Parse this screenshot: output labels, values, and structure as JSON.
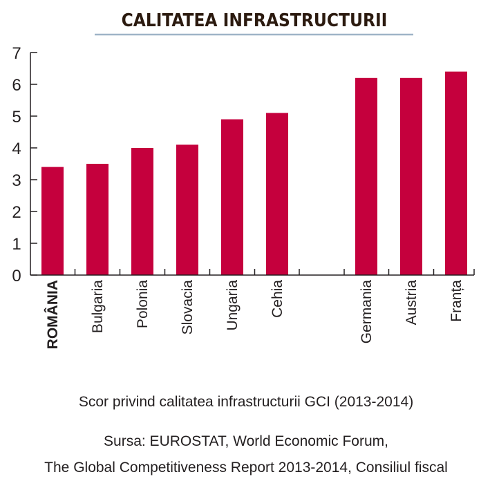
{
  "chart_data": {
    "type": "bar",
    "title": "CALITATEA INFRASTRUCTURII",
    "categories": [
      "ROMÂNIA",
      "Bulgaria",
      "Polonia",
      "Slovacia",
      "Ungaria",
      "Cehia",
      "Germania",
      "Austria",
      "Franța"
    ],
    "values": [
      3.4,
      3.5,
      4.0,
      4.1,
      4.9,
      5.1,
      6.2,
      6.2,
      6.4
    ],
    "highlight_category": "ROMÂNIA",
    "yticks": [
      "0",
      "1",
      "2",
      "3",
      "4",
      "5",
      "6",
      "7"
    ],
    "ylim": [
      0,
      7
    ],
    "grid": false,
    "legend": "none",
    "bar_color": "#c5003d",
    "axis_color": "#231f20",
    "title_rule_color": "#9fb4c7",
    "xlabel": "",
    "ylabel": ""
  },
  "captions": {
    "subtitle": "Scor privind calitatea infrastructurii GCI (2013-2014)",
    "source_line1": "Sursa: EUROSTAT, World Economic Forum,",
    "source_line2": "The Global Competitiveness Report 2013-2014, Consiliul fiscal"
  }
}
